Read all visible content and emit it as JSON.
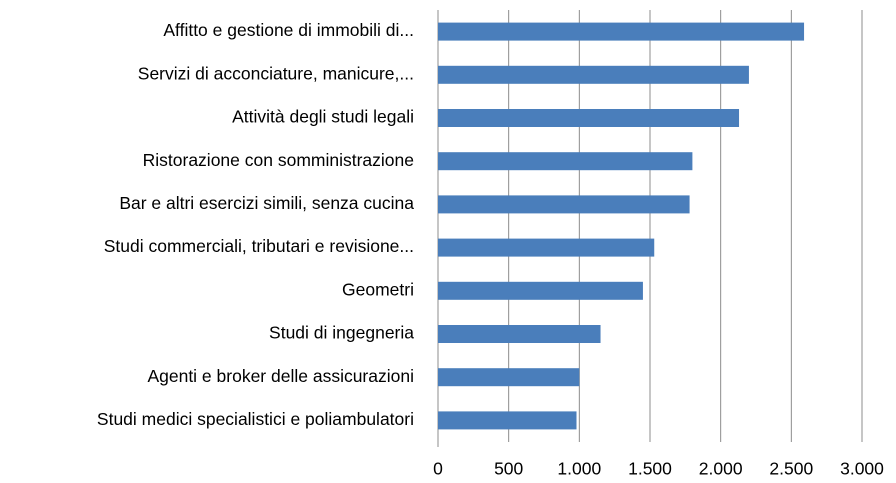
{
  "chart_data": {
    "type": "bar",
    "orientation": "horizontal",
    "categories": [
      "Affitto e gestione di immobili di...",
      "Servizi di acconciature, manicure,...",
      "Attività degli studi legali",
      "Ristorazione con somministrazione",
      "Bar e altri esercizi simili, senza cucina",
      "Studi commerciali, tributari e revisione...",
      "Geometri",
      "Studi di ingegneria",
      "Agenti e broker delle assicurazioni",
      "Studi medici specialistici e poliambulatori"
    ],
    "values": [
      2590,
      2200,
      2130,
      1800,
      1780,
      1530,
      1450,
      1150,
      1000,
      980
    ],
    "color": "#4a7ebb",
    "xlim": [
      0,
      3000
    ],
    "xticks": [
      0,
      500,
      {
        "value": 1000,
        "label": "1.000"
      },
      {
        "value": 1500,
        "label": "1.500"
      },
      {
        "value": 2000,
        "label": "2.000"
      },
      {
        "value": 2500,
        "label": "2.500"
      },
      {
        "value": 3000,
        "label": "3.000"
      }
    ],
    "grid": true
  }
}
